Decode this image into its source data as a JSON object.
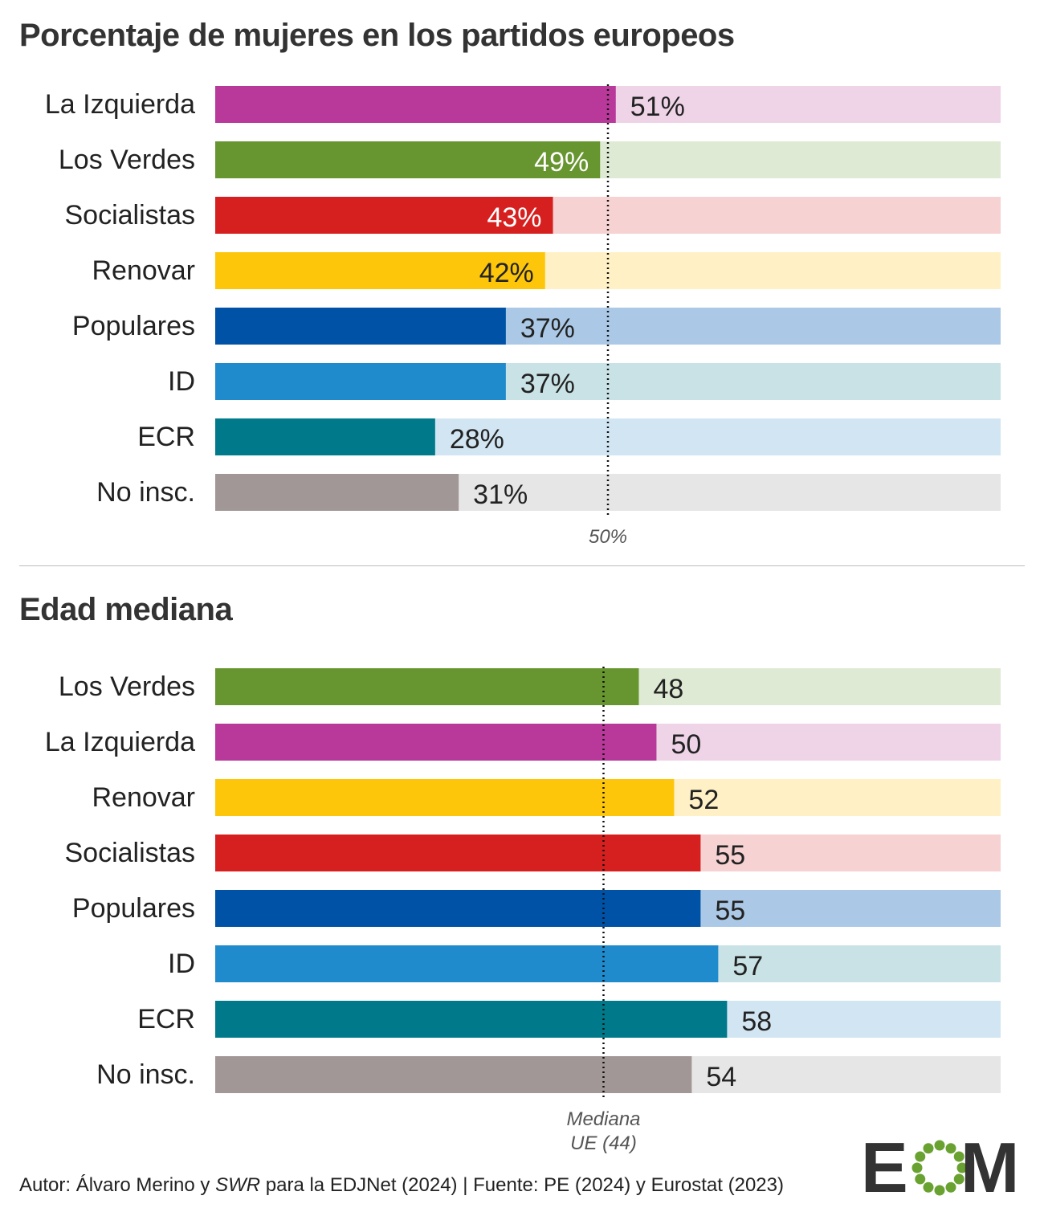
{
  "colors": {
    "la_izquierda": "#b8399a",
    "la_izquierda_light": "#efd4e8",
    "los_verdes": "#67952f",
    "los_verdes_light": "#deead3",
    "socialistas": "#d6201f",
    "socialistas_light": "#f7d2d2",
    "renovar": "#fdc60a",
    "renovar_light": "#fff1c5",
    "populares": "#0052a6",
    "populares_light": "#abc9e6",
    "id": "#1f8bcd",
    "id_light": "#c9e2e6",
    "ecr": "#007a8a",
    "ecr_light": "#d2e5f2",
    "no_insc": "#a19796",
    "no_insc_light": "#e7e6e6",
    "logo_dark": "#333333",
    "logo_green": "#6aa232"
  },
  "logo": {
    "text": "EOM"
  },
  "footer": {
    "part1": "Autor: Álvaro Merino y ",
    "italic": "SWR",
    "part2": " para la EDJNet (2024) | Fuente: PE (2024) y Eurostat (2023)"
  },
  "chart_data": [
    {
      "type": "bar",
      "orientation": "horizontal",
      "title": "Porcentaje de mujeres en los partidos europeos",
      "xlim": [
        0,
        100
      ],
      "reference_line": {
        "value": 50,
        "label": [
          "50%"
        ]
      },
      "value_suffix": "%",
      "categories": [
        "La Izquierda",
        "Los Verdes",
        "Socialistas",
        "Renovar",
        "Populares",
        "ID",
        "ECR",
        "No insc."
      ],
      "values": [
        51,
        49,
        43,
        42,
        37,
        37,
        28,
        31
      ],
      "color_keys": [
        "la_izquierda",
        "los_verdes",
        "socialistas",
        "renovar",
        "populares",
        "id",
        "ecr",
        "no_insc"
      ],
      "label_inside": [
        false,
        true,
        true,
        true,
        false,
        false,
        false,
        false
      ]
    },
    {
      "type": "bar",
      "orientation": "horizontal",
      "title": "Edad mediana",
      "xlim": [
        0,
        89
      ],
      "reference_line": {
        "value": 44,
        "label": [
          "Mediana",
          "UE (44)"
        ]
      },
      "value_suffix": "",
      "categories": [
        "Los Verdes",
        "La Izquierda",
        "Renovar",
        "Socialistas",
        "Populares",
        "ID",
        "ECR",
        "No insc."
      ],
      "values": [
        48,
        50,
        52,
        55,
        55,
        57,
        58,
        54
      ],
      "color_keys": [
        "los_verdes",
        "la_izquierda",
        "renovar",
        "socialistas",
        "populares",
        "id",
        "ecr",
        "no_insc"
      ],
      "label_inside": [
        false,
        false,
        false,
        false,
        false,
        false,
        false,
        false
      ]
    }
  ]
}
